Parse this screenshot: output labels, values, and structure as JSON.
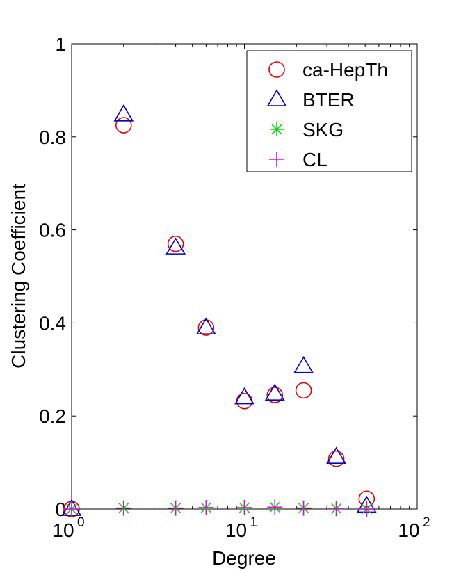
{
  "chart_data": {
    "type": "scatter",
    "title": "",
    "xlabel": "Degree",
    "ylabel": "Clustering Coefficient",
    "xscale": "log",
    "xlim": [
      1,
      100
    ],
    "ylim": [
      0,
      1
    ],
    "grid": false,
    "legend_position": "top-right",
    "x_ticks": [
      {
        "value": 1,
        "base": "10",
        "exp": "0"
      },
      {
        "value": 10,
        "base": "10",
        "exp": "1"
      },
      {
        "value": 100,
        "base": "10",
        "exp": "2"
      }
    ],
    "y_ticks": [
      {
        "value": 0,
        "label": "0"
      },
      {
        "value": 0.2,
        "label": "0.2"
      },
      {
        "value": 0.4,
        "label": "0.4"
      },
      {
        "value": 0.6,
        "label": "0.6"
      },
      {
        "value": 0.8,
        "label": "0.8"
      },
      {
        "value": 1,
        "label": "1"
      }
    ],
    "series": [
      {
        "name": "ca-HepTh",
        "marker": "circle",
        "color": "#e00000",
        "x": [
          1,
          2,
          4,
          6,
          10,
          15,
          22,
          34,
          51
        ],
        "y": [
          0,
          0.825,
          0.57,
          0.39,
          0.232,
          0.245,
          0.255,
          0.108,
          0.022
        ]
      },
      {
        "name": "BTER",
        "marker": "triangle",
        "color": "#0000cc",
        "x": [
          1,
          2,
          4,
          6,
          10,
          15,
          22,
          34,
          51
        ],
        "y": [
          0,
          0.848,
          0.562,
          0.39,
          0.24,
          0.248,
          0.307,
          0.112,
          0.007
        ]
      },
      {
        "name": "SKG",
        "marker": "asterisk",
        "color": "#00dd00",
        "x": [
          1,
          2,
          4,
          6,
          10,
          15,
          22,
          34,
          51
        ],
        "y": [
          0,
          0.002,
          0.002,
          0.003,
          0.003,
          0.004,
          0.002,
          0.001,
          0
        ]
      },
      {
        "name": "CL",
        "marker": "plus",
        "color": "#ee00ee",
        "x": [
          1,
          2,
          4,
          6,
          10,
          15,
          22,
          34,
          51
        ],
        "y": [
          0,
          0.002,
          0.002,
          0.003,
          0.003,
          0.004,
          0.002,
          0.001,
          0
        ]
      }
    ]
  }
}
